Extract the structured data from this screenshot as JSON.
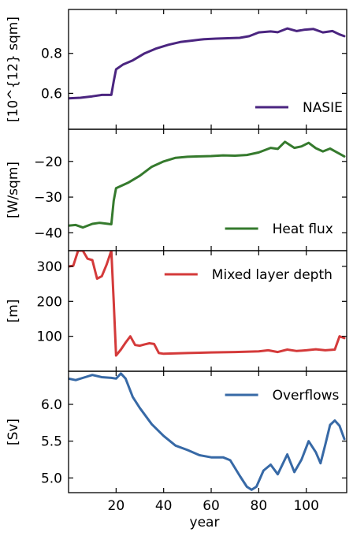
{
  "chart_data": {
    "type": "line",
    "xlabel": "year",
    "xlim": [
      0,
      117
    ],
    "x_ticks": [
      20,
      40,
      60,
      80,
      100
    ],
    "panels": [
      {
        "ylabel": "[10^{12} sqm]",
        "ylim": [
          0.42,
          1.02
        ],
        "y_ticks": [
          0.6,
          0.8
        ],
        "legend_position": "lower right",
        "series": [
          {
            "name": "NASIE",
            "color": "#4b2580",
            "points": [
              [
                0,
                0.575
              ],
              [
                5,
                0.578
              ],
              [
                10,
                0.585
              ],
              [
                14,
                0.592
              ],
              [
                18,
                0.592
              ],
              [
                19,
                0.66
              ],
              [
                20,
                0.72
              ],
              [
                23,
                0.745
              ],
              [
                27,
                0.765
              ],
              [
                32,
                0.8
              ],
              [
                37,
                0.825
              ],
              [
                42,
                0.843
              ],
              [
                47,
                0.857
              ],
              [
                52,
                0.864
              ],
              [
                57,
                0.871
              ],
              [
                62,
                0.874
              ],
              [
                67,
                0.876
              ],
              [
                72,
                0.878
              ],
              [
                76,
                0.886
              ],
              [
                80,
                0.905
              ],
              [
                85,
                0.91
              ],
              [
                88,
                0.906
              ],
              [
                92,
                0.925
              ],
              [
                96,
                0.912
              ],
              [
                99,
                0.918
              ],
              [
                103,
                0.922
              ],
              [
                107,
                0.905
              ],
              [
                111,
                0.912
              ],
              [
                114,
                0.895
              ],
              [
                116,
                0.886
              ]
            ]
          }
        ]
      },
      {
        "ylabel": "[W/sqm]",
        "ylim": [
          -45,
          -11
        ],
        "y_ticks": [
          -40,
          -30,
          -20
        ],
        "legend_position": "lower right",
        "series": [
          {
            "name": "Heat flux",
            "color": "#357a2d",
            "points": [
              [
                0,
                -38
              ],
              [
                3,
                -37.8
              ],
              [
                6,
                -38.5
              ],
              [
                10,
                -37.5
              ],
              [
                13,
                -37.2
              ],
              [
                18,
                -37.6
              ],
              [
                19,
                -31
              ],
              [
                20,
                -27.5
              ],
              [
                25,
                -26
              ],
              [
                30,
                -24
              ],
              [
                35,
                -21.5
              ],
              [
                40,
                -20
              ],
              [
                45,
                -19
              ],
              [
                50,
                -18.7
              ],
              [
                55,
                -18.6
              ],
              [
                60,
                -18.5
              ],
              [
                65,
                -18.3
              ],
              [
                70,
                -18.4
              ],
              [
                75,
                -18.2
              ],
              [
                80,
                -17.5
              ],
              [
                85,
                -16.2
              ],
              [
                88,
                -16.5
              ],
              [
                91,
                -14.5
              ],
              [
                95,
                -16.2
              ],
              [
                98,
                -15.8
              ],
              [
                101,
                -14.8
              ],
              [
                104,
                -16.3
              ],
              [
                107,
                -17.2
              ],
              [
                110,
                -16.4
              ],
              [
                113,
                -17.5
              ],
              [
                116,
                -18.6
              ]
            ]
          }
        ]
      },
      {
        "ylabel": "[m]",
        "ylim": [
          0,
          345
        ],
        "y_ticks": [
          100,
          200,
          300
        ],
        "legend_position": "upper right",
        "series": [
          {
            "name": "Mixed layer depth",
            "color": "#d43a3a",
            "points": [
              [
                0,
                300
              ],
              [
                2,
                302
              ],
              [
                4,
                345
              ],
              [
                6,
                345
              ],
              [
                8,
                322
              ],
              [
                10,
                318
              ],
              [
                12,
                265
              ],
              [
                14,
                272
              ],
              [
                16,
                305
              ],
              [
                18,
                345
              ],
              [
                19,
                200
              ],
              [
                20,
                45
              ],
              [
                22,
                62
              ],
              [
                24,
                82
              ],
              [
                26,
                100
              ],
              [
                28,
                75
              ],
              [
                30,
                73
              ],
              [
                32,
                77
              ],
              [
                34,
                80
              ],
              [
                36,
                78
              ],
              [
                38,
                52
              ],
              [
                40,
                50
              ],
              [
                50,
                52
              ],
              [
                60,
                54
              ],
              [
                70,
                55
              ],
              [
                80,
                57
              ],
              [
                84,
                60
              ],
              [
                88,
                55
              ],
              [
                92,
                62
              ],
              [
                96,
                58
              ],
              [
                100,
                60
              ],
              [
                104,
                63
              ],
              [
                108,
                60
              ],
              [
                112,
                62
              ],
              [
                114,
                100
              ],
              [
                116,
                95
              ]
            ]
          }
        ]
      },
      {
        "ylabel": "[Sv]",
        "ylim": [
          4.8,
          6.45
        ],
        "y_ticks": [
          5.0,
          5.5,
          6.0
        ],
        "legend_position": "upper right",
        "series": [
          {
            "name": "Overflows",
            "color": "#3769a6",
            "points": [
              [
                0,
                6.35
              ],
              [
                3,
                6.33
              ],
              [
                7,
                6.37
              ],
              [
                10,
                6.4
              ],
              [
                14,
                6.37
              ],
              [
                18,
                6.36
              ],
              [
                20,
                6.35
              ],
              [
                22,
                6.42
              ],
              [
                24,
                6.35
              ],
              [
                27,
                6.1
              ],
              [
                30,
                5.95
              ],
              [
                35,
                5.73
              ],
              [
                40,
                5.57
              ],
              [
                45,
                5.44
              ],
              [
                50,
                5.38
              ],
              [
                55,
                5.31
              ],
              [
                60,
                5.28
              ],
              [
                65,
                5.28
              ],
              [
                68,
                5.24
              ],
              [
                72,
                5.03
              ],
              [
                75,
                4.88
              ],
              [
                77,
                4.84
              ],
              [
                79,
                4.88
              ],
              [
                82,
                5.1
              ],
              [
                85,
                5.18
              ],
              [
                88,
                5.05
              ],
              [
                92,
                5.32
              ],
              [
                95,
                5.08
              ],
              [
                98,
                5.25
              ],
              [
                101,
                5.5
              ],
              [
                104,
                5.35
              ],
              [
                106,
                5.2
              ],
              [
                108,
                5.45
              ],
              [
                110,
                5.72
              ],
              [
                112,
                5.78
              ],
              [
                114,
                5.71
              ],
              [
                116,
                5.53
              ]
            ]
          }
        ]
      }
    ]
  }
}
